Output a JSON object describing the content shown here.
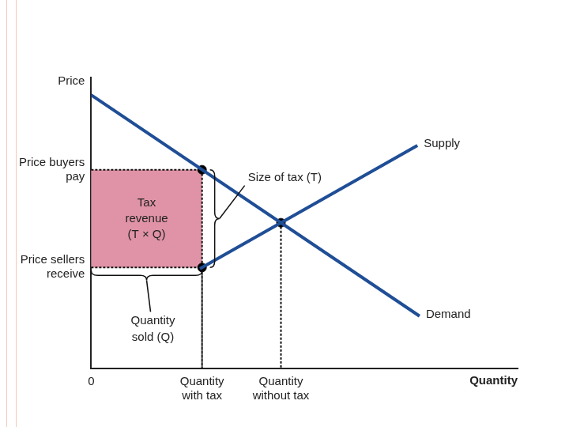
{
  "chart_data": {
    "type": "line",
    "x_label": "Quantity",
    "y_label": "Price",
    "xlim": [
      0,
      100
    ],
    "ylim": [
      0,
      100
    ],
    "xticks": [
      {
        "value": 0,
        "label": "0"
      },
      {
        "value": 26,
        "label": [
          "Quantity",
          "with tax"
        ]
      },
      {
        "value": 44.5,
        "label": [
          "Quantity",
          "without tax"
        ]
      }
    ],
    "yticks": [
      {
        "value": 34.7,
        "label": [
          "Price sellers",
          "receive"
        ]
      },
      {
        "value": 68.3,
        "label": [
          "Price buyers",
          "pay"
        ]
      }
    ],
    "grid": false,
    "series": [
      {
        "name": "Demand",
        "color": "#1f4e96",
        "x": [
          0,
          77
        ],
        "values": [
          94,
          18
        ]
      },
      {
        "name": "Supply",
        "color": "#1f4e96",
        "x": [
          25.5,
          76.5
        ],
        "values": [
          34.3,
          76.6
        ]
      }
    ],
    "points": {
      "x": [
        26,
        26,
        44.5
      ],
      "values": [
        68.3,
        34.7,
        50.1
      ],
      "color": "#000000"
    },
    "annotations": {
      "tax_size": "Size of tax (T)",
      "tax_revenue": [
        "Tax",
        "revenue",
        "(T × Q)"
      ],
      "quantity_sold": [
        "Quantity",
        "sold (Q)"
      ]
    }
  }
}
